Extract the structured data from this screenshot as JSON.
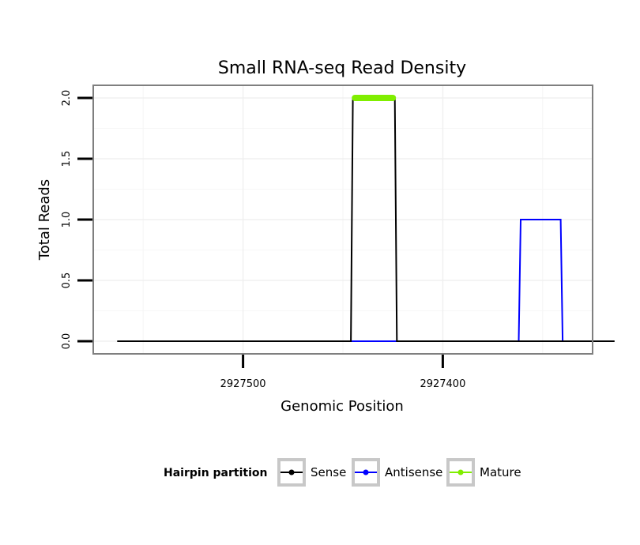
{
  "chart_data": {
    "type": "line",
    "title": "Small RNA-seq Read Density",
    "xlabel": "Genomic Position",
    "ylabel": "Total Reads",
    "x_reversed": true,
    "xlim": [
      2927575,
      2927325
    ],
    "ylim": [
      0,
      2
    ],
    "x_ticks": [
      2927500,
      2927400
    ],
    "x_tick_labels": [
      "2927500",
      "2927400"
    ],
    "y_ticks": [
      0,
      0.5,
      1,
      1.5,
      2
    ],
    "y_tick_labels": [
      "0.0",
      "0.5",
      "1.0",
      "1.5",
      "2.0"
    ],
    "grid": true,
    "legend": {
      "title": "Hairpin partition",
      "position": "bottom",
      "entries": [
        {
          "label": "Sense",
          "color": "#000000"
        },
        {
          "label": "Antisense",
          "color": "#0000ff"
        },
        {
          "label": "Mature",
          "color": "#80ee00"
        }
      ]
    },
    "series": [
      {
        "name": "Sense",
        "color": "#000000",
        "x": [
          2927563,
          2927446,
          2927445,
          2927424,
          2927423,
          2927314
        ],
        "y": [
          0,
          0,
          2,
          2,
          0,
          0
        ]
      },
      {
        "name": "Antisense",
        "color": "#0000ff",
        "x": [
          2927446,
          2927423,
          2927362,
          2927361,
          2927341,
          2927340
        ],
        "y": [
          0,
          0,
          0,
          1,
          1,
          0
        ]
      },
      {
        "name": "Mature",
        "color": "#80ee00",
        "x": [
          2927444,
          2927425
        ],
        "y": [
          2,
          2
        ]
      }
    ]
  }
}
